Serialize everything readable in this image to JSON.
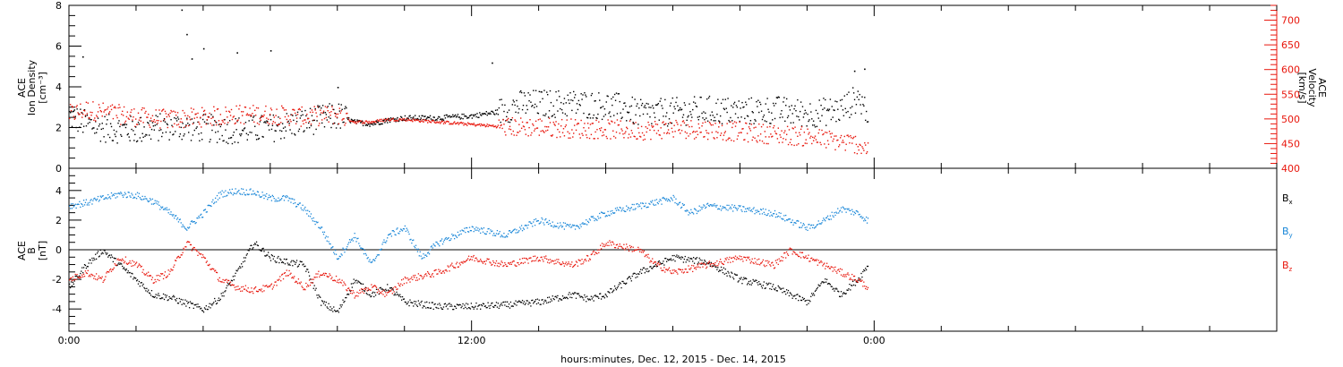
{
  "x_axis": {
    "label": "hours:minutes, Dec. 12, 2015 - Dec. 14, 2015",
    "range_hours": [
      0,
      36
    ],
    "ticks": [
      {
        "hours": 0,
        "label": "0:00"
      },
      {
        "hours": 12,
        "label": "12:00"
      },
      {
        "hours": 24,
        "label": "0:00"
      }
    ],
    "minor_every_hours": 2
  },
  "chart_data": [
    {
      "type": "scatter",
      "panel": "plasma",
      "left_axis": {
        "label_lines": [
          "ACE",
          "Ion Density",
          "[cm⁻³]"
        ],
        "ylim": [
          0,
          8
        ],
        "ticks": [
          0,
          2,
          4,
          6,
          8
        ],
        "color": "#000000"
      },
      "right_axis": {
        "label_lines": [
          "ACE",
          "Velocity",
          "[km/s]"
        ],
        "ylim": [
          400,
          730
        ],
        "ticks": [
          400,
          450,
          500,
          550,
          600,
          650,
          700
        ],
        "color": "#e8160c"
      },
      "series": [
        {
          "axis": "left",
          "color": "#000000",
          "points": [
            [
              0.0,
              2.6
            ],
            [
              0.5,
              2.2
            ],
            [
              1.0,
              2.0
            ],
            [
              2.0,
              1.9
            ],
            [
              3.0,
              2.1
            ],
            [
              4.0,
              2.0
            ],
            [
              5.0,
              1.9
            ],
            [
              6.0,
              2.0
            ],
            [
              7.0,
              2.3
            ],
            [
              8.0,
              2.6
            ],
            [
              8.5,
              2.3
            ],
            [
              9.0,
              2.2
            ],
            [
              9.5,
              2.4
            ],
            [
              10.0,
              2.5
            ],
            [
              11.0,
              2.5
            ],
            [
              12.0,
              2.6
            ],
            [
              12.8,
              2.8
            ],
            [
              13.5,
              3.2
            ],
            [
              14.0,
              3.2
            ],
            [
              15.0,
              3.2
            ],
            [
              16.0,
              3.1
            ],
            [
              16.5,
              3.0
            ],
            [
              17.0,
              2.7
            ],
            [
              18.0,
              2.8
            ],
            [
              19.0,
              2.9
            ],
            [
              20.0,
              2.8
            ],
            [
              21.0,
              2.9
            ],
            [
              22.0,
              2.7
            ],
            [
              22.5,
              2.8
            ],
            [
              23.0,
              2.9
            ],
            [
              23.5,
              3.5
            ],
            [
              23.8,
              2.8
            ]
          ],
          "outliers": [
            [
              0.4,
              5.5
            ],
            [
              3.35,
              7.8
            ],
            [
              3.5,
              6.6
            ],
            [
              3.65,
              5.4
            ],
            [
              4.0,
              5.9
            ],
            [
              5.0,
              5.7
            ],
            [
              6.0,
              5.8
            ],
            [
              8.0,
              4.0
            ],
            [
              12.6,
              5.2
            ],
            [
              23.4,
              4.8
            ],
            [
              23.7,
              4.9
            ]
          ]
        },
        {
          "axis": "right",
          "color": "#e8160c",
          "points": [
            [
              0.0,
              510
            ],
            [
              0.5,
              520
            ],
            [
              1.0,
              515
            ],
            [
              2.0,
              505
            ],
            [
              3.0,
              500
            ],
            [
              4.0,
              505
            ],
            [
              5.0,
              510
            ],
            [
              6.0,
              510
            ],
            [
              7.0,
              505
            ],
            [
              8.0,
              510
            ],
            [
              8.5,
              495
            ],
            [
              9.0,
              495
            ],
            [
              9.5,
              500
            ],
            [
              10.0,
              500
            ],
            [
              11.0,
              495
            ],
            [
              12.0,
              490
            ],
            [
              13.0,
              485
            ],
            [
              14.0,
              485
            ],
            [
              15.0,
              482
            ],
            [
              16.0,
              480
            ],
            [
              17.0,
              478
            ],
            [
              18.0,
              482
            ],
            [
              19.0,
              480
            ],
            [
              20.0,
              475
            ],
            [
              21.0,
              470
            ],
            [
              22.0,
              465
            ],
            [
              23.0,
              455
            ],
            [
              23.5,
              450
            ],
            [
              23.8,
              440
            ]
          ]
        }
      ]
    },
    {
      "type": "scatter",
      "panel": "magnetic-field",
      "left_axis": {
        "label_lines": [
          "ACE",
          "B",
          "[nT]"
        ],
        "ylim": [
          -5.5,
          5.5
        ],
        "ticks": [
          -4,
          -2,
          0,
          2,
          4
        ],
        "color": "#000000"
      },
      "zero_line": true,
      "legend": [
        {
          "label": "B",
          "sub": "x",
          "color": "#000000"
        },
        {
          "label": "B",
          "sub": "y",
          "color": "#1a87d8"
        },
        {
          "label": "B",
          "sub": "z",
          "color": "#e8160c"
        }
      ],
      "series": [
        {
          "name": "Bx",
          "color": "#000000",
          "points": [
            [
              0.0,
              -2.5
            ],
            [
              0.5,
              -1.0
            ],
            [
              1.0,
              0.0
            ],
            [
              1.5,
              -1.0
            ],
            [
              2.0,
              -2.0
            ],
            [
              2.5,
              -3.0
            ],
            [
              3.0,
              -3.2
            ],
            [
              3.5,
              -3.6
            ],
            [
              4.0,
              -4.0
            ],
            [
              4.5,
              -3.2
            ],
            [
              5.0,
              -1.5
            ],
            [
              5.5,
              0.5
            ],
            [
              6.0,
              -0.5
            ],
            [
              6.5,
              -0.8
            ],
            [
              7.0,
              -1.0
            ],
            [
              7.5,
              -3.5
            ],
            [
              8.0,
              -4.2
            ],
            [
              8.5,
              -2.0
            ],
            [
              9.0,
              -3.0
            ],
            [
              9.5,
              -2.5
            ],
            [
              10.0,
              -3.5
            ],
            [
              11.0,
              -3.8
            ],
            [
              12.0,
              -3.8
            ],
            [
              13.0,
              -3.7
            ],
            [
              14.0,
              -3.5
            ],
            [
              15.0,
              -3.0
            ],
            [
              15.5,
              -3.3
            ],
            [
              16.0,
              -3.0
            ],
            [
              17.0,
              -1.5
            ],
            [
              18.0,
              -0.5
            ],
            [
              19.0,
              -0.8
            ],
            [
              20.0,
              -2.0
            ],
            [
              21.0,
              -2.5
            ],
            [
              22.0,
              -3.5
            ],
            [
              22.5,
              -2.0
            ],
            [
              23.0,
              -3.0
            ],
            [
              23.5,
              -2.0
            ],
            [
              23.8,
              -1.0
            ]
          ]
        },
        {
          "name": "By",
          "color": "#1a87d8",
          "points": [
            [
              0.0,
              3.0
            ],
            [
              0.5,
              3.2
            ],
            [
              1.0,
              3.5
            ],
            [
              1.5,
              3.8
            ],
            [
              2.0,
              3.7
            ],
            [
              2.5,
              3.3
            ],
            [
              3.0,
              2.5
            ],
            [
              3.5,
              1.5
            ],
            [
              4.0,
              2.5
            ],
            [
              4.5,
              3.8
            ],
            [
              5.0,
              4.0
            ],
            [
              5.5,
              3.9
            ],
            [
              6.0,
              3.5
            ],
            [
              6.5,
              3.5
            ],
            [
              7.0,
              2.8
            ],
            [
              7.5,
              1.5
            ],
            [
              8.0,
              -0.5
            ],
            [
              8.5,
              1.0
            ],
            [
              9.0,
              -1.0
            ],
            [
              9.5,
              1.0
            ],
            [
              10.0,
              1.5
            ],
            [
              10.5,
              -0.5
            ],
            [
              11.0,
              0.5
            ],
            [
              12.0,
              1.5
            ],
            [
              13.0,
              1.0
            ],
            [
              13.5,
              1.5
            ],
            [
              14.0,
              2.0
            ],
            [
              15.0,
              1.5
            ],
            [
              16.0,
              2.5
            ],
            [
              17.0,
              3.0
            ],
            [
              18.0,
              3.5
            ],
            [
              18.5,
              2.5
            ],
            [
              19.0,
              3.0
            ],
            [
              20.0,
              2.8
            ],
            [
              21.0,
              2.5
            ],
            [
              22.0,
              1.5
            ],
            [
              22.5,
              2.0
            ],
            [
              23.0,
              2.8
            ],
            [
              23.5,
              2.5
            ],
            [
              23.8,
              2.0
            ]
          ]
        },
        {
          "name": "Bz",
          "color": "#e8160c",
          "points": [
            [
              0.0,
              -2.0
            ],
            [
              0.5,
              -1.5
            ],
            [
              1.0,
              -2.0
            ],
            [
              1.5,
              -0.5
            ],
            [
              2.0,
              -1.0
            ],
            [
              2.5,
              -2.0
            ],
            [
              3.0,
              -1.5
            ],
            [
              3.5,
              0.5
            ],
            [
              4.0,
              -0.5
            ],
            [
              4.5,
              -2.0
            ],
            [
              5.0,
              -2.5
            ],
            [
              5.5,
              -2.7
            ],
            [
              6.0,
              -2.5
            ],
            [
              6.5,
              -1.5
            ],
            [
              7.0,
              -2.5
            ],
            [
              7.5,
              -1.5
            ],
            [
              8.0,
              -2.0
            ],
            [
              8.5,
              -3.0
            ],
            [
              9.0,
              -2.5
            ],
            [
              9.5,
              -3.0
            ],
            [
              10.0,
              -2.0
            ],
            [
              11.0,
              -1.5
            ],
            [
              12.0,
              -0.5
            ],
            [
              13.0,
              -1.0
            ],
            [
              14.0,
              -0.5
            ],
            [
              15.0,
              -1.0
            ],
            [
              15.5,
              -0.5
            ],
            [
              16.0,
              0.5
            ],
            [
              17.0,
              0.0
            ],
            [
              17.5,
              -1.0
            ],
            [
              18.0,
              -1.5
            ],
            [
              19.0,
              -1.0
            ],
            [
              20.0,
              -0.5
            ],
            [
              21.0,
              -1.0
            ],
            [
              21.5,
              0.0
            ],
            [
              22.0,
              -0.5
            ],
            [
              23.0,
              -1.5
            ],
            [
              23.5,
              -2.0
            ],
            [
              23.8,
              -2.5
            ]
          ]
        }
      ]
    }
  ]
}
